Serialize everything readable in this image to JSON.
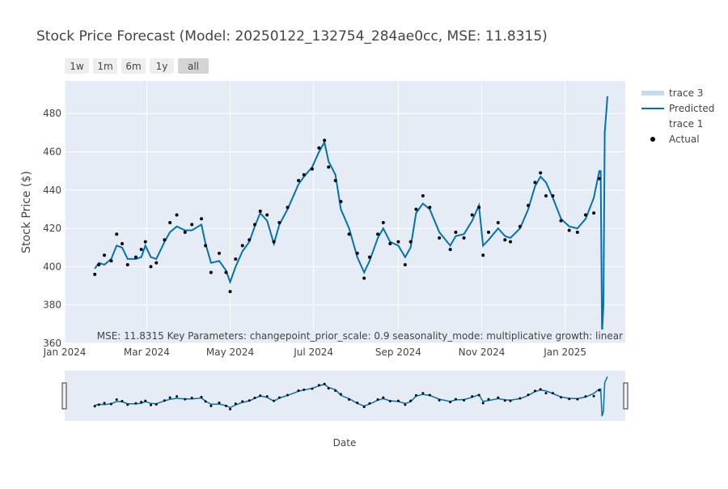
{
  "chart_data": {
    "type": "line",
    "title": "Stock Price Forecast (Model: 20250122_132754_284ae0cc, MSE: 11.8315)",
    "x_label": "Date",
    "y_label": "Stock Price ($)",
    "annotation": "MSE: 11.8315 Key Parameters: changepoint_prior_scale: 0.9 seasonality_mode: multiplicative growth: linear",
    "range_buttons": [
      "1w",
      "1m",
      "6m",
      "1y",
      "all"
    ],
    "active_button": "all",
    "grid": true,
    "ylim": [
      360,
      497
    ],
    "yticks": [
      360,
      380,
      400,
      420,
      440,
      460,
      480
    ],
    "xlim": [
      "2024-01-01",
      "2025-02-14"
    ],
    "xticks": [
      {
        "value": "2024-01-01",
        "label": "Jan 2024"
      },
      {
        "value": "2024-03-01",
        "label": "Mar 2024"
      },
      {
        "value": "2024-05-01",
        "label": "May 2024"
      },
      {
        "value": "2024-07-01",
        "label": "Jul 2024"
      },
      {
        "value": "2024-09-01",
        "label": "Sep 2024"
      },
      {
        "value": "2024-11-01",
        "label": "Nov 2024"
      },
      {
        "value": "2025-01-01",
        "label": "Jan 2025"
      }
    ],
    "legend_entries": [
      {
        "name": "trace 3",
        "color": "#c6dcea",
        "symbol": "band"
      },
      {
        "name": "Predicted",
        "color": "#0072b2",
        "symbol": "line"
      },
      {
        "name": "trace 1",
        "color": "#ffffff",
        "symbol": "none"
      },
      {
        "name": "Actual",
        "color": "#000000",
        "symbol": "dot"
      }
    ],
    "x": [
      "2024-01-23",
      "2024-01-26",
      "2024-01-30",
      "2024-02-04",
      "2024-02-08",
      "2024-02-12",
      "2024-02-16",
      "2024-02-22",
      "2024-02-26",
      "2024-02-29",
      "2024-03-04",
      "2024-03-08",
      "2024-03-14",
      "2024-03-18",
      "2024-03-23",
      "2024-03-29",
      "2024-04-03",
      "2024-04-10",
      "2024-04-13",
      "2024-04-17",
      "2024-04-23",
      "2024-04-28",
      "2024-05-01",
      "2024-05-05",
      "2024-05-10",
      "2024-05-15",
      "2024-05-19",
      "2024-05-23",
      "2024-05-28",
      "2024-06-02",
      "2024-06-06",
      "2024-06-12",
      "2024-06-20",
      "2024-06-24",
      "2024-06-30",
      "2024-07-05",
      "2024-07-09",
      "2024-07-12",
      "2024-07-17",
      "2024-07-21",
      "2024-07-27",
      "2024-08-02",
      "2024-08-07",
      "2024-08-11",
      "2024-08-17",
      "2024-08-21",
      "2024-08-26",
      "2024-09-01",
      "2024-09-06",
      "2024-09-10",
      "2024-09-14",
      "2024-09-19",
      "2024-09-24",
      "2024-10-01",
      "2024-10-09",
      "2024-10-13",
      "2024-10-19",
      "2024-10-25",
      "2024-10-30",
      "2024-11-02",
      "2024-11-06",
      "2024-11-13",
      "2024-11-18",
      "2024-11-22",
      "2024-11-29",
      "2024-12-05",
      "2024-12-10",
      "2024-12-14",
      "2024-12-18",
      "2024-12-23",
      "2024-12-29",
      "2025-01-04",
      "2025-01-10",
      "2025-01-16",
      "2025-01-22",
      "2025-01-26",
      "2025-01-27",
      "2025-01-28",
      "2025-01-29",
      "2025-01-30",
      "2025-02-01"
    ],
    "series": [
      {
        "name": "Predicted",
        "color": "#0072b2",
        "mode": "line",
        "values": [
          399,
          402,
          401,
          404,
          411,
          410,
          404,
          404,
          405,
          411,
          405,
          404,
          413,
          418,
          421,
          419,
          419,
          422,
          412,
          402,
          403,
          398,
          392,
          400,
          408,
          413,
          421,
          428,
          424,
          412,
          422,
          430,
          443,
          447,
          452,
          460,
          465,
          455,
          448,
          430,
          420,
          405,
          397,
          403,
          415,
          420,
          413,
          411,
          405,
          410,
          428,
          433,
          430,
          418,
          411,
          416,
          417,
          424,
          432,
          411,
          414,
          420,
          416,
          415,
          420,
          430,
          442,
          447,
          444,
          436,
          425,
          421,
          420,
          425,
          436,
          450,
          450,
          365,
          380,
          470,
          489
        ]
      },
      {
        "name": "Actual",
        "color": "#000000",
        "mode": "markers",
        "values": [
          396,
          401,
          406,
          403,
          417,
          412,
          401,
          405,
          409,
          413,
          400,
          402,
          414,
          423,
          427,
          418,
          422,
          425,
          411,
          397,
          407,
          397,
          387,
          404,
          411,
          414,
          422,
          429,
          427,
          413,
          423,
          431,
          445,
          448,
          451,
          462,
          466,
          452,
          445,
          434,
          417,
          407,
          394,
          405,
          417,
          423,
          412,
          413,
          401,
          413,
          430,
          437,
          431,
          415,
          409,
          418,
          415,
          427,
          431,
          406,
          418,
          423,
          414,
          413,
          421,
          432,
          444,
          449,
          437,
          437,
          424,
          419,
          418,
          427,
          428,
          446,
          null,
          null,
          null,
          null,
          null
        ]
      }
    ]
  }
}
